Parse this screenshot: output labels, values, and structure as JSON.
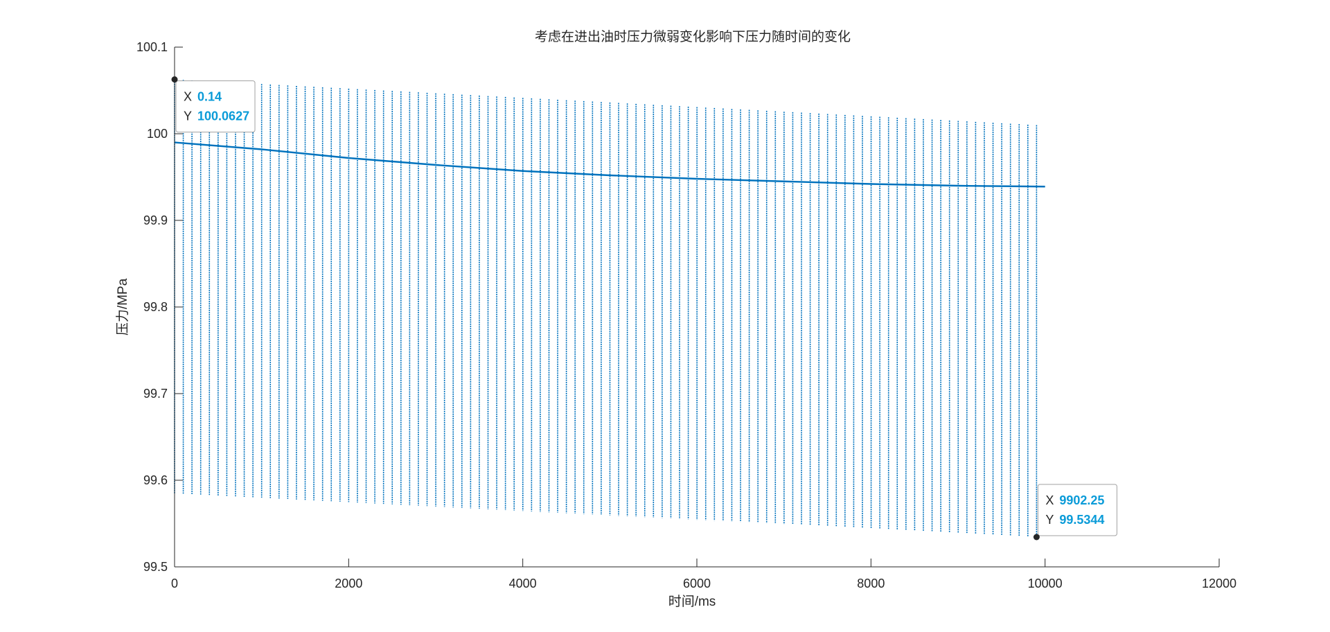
{
  "chart_data": {
    "type": "line",
    "title": "考虑在进出油时压力微弱变化影响下压力随时间的变化",
    "xlabel": "时间/ms",
    "ylabel": "压力/MPa",
    "xlim": [
      0,
      12000
    ],
    "ylim": [
      99.5,
      100.1
    ],
    "x_ticks": [
      "0",
      "2000",
      "4000",
      "6000",
      "8000",
      "10000",
      "12000"
    ],
    "y_ticks": [
      "99.5",
      "99.6",
      "99.7",
      "99.8",
      "99.9",
      "100",
      "100.1"
    ],
    "grid": false,
    "line_color": "#0072bd",
    "oscillation": {
      "period_ms": 100,
      "x_start": 0,
      "x_end": 9902.25,
      "upper_start": 100.0627,
      "upper_end": 100.01,
      "lower_start": 99.585,
      "lower_end": 99.5344
    },
    "series": [
      {
        "x": [
          0,
          1000,
          2000,
          3000,
          4000,
          5000,
          6000,
          7000,
          8000,
          9000,
          10000
        ],
        "y": [
          99.99,
          99.982,
          99.972,
          99.964,
          99.957,
          99.952,
          99.948,
          99.945,
          99.942,
          99.94,
          99.939
        ]
      }
    ],
    "datatips": [
      {
        "x_label": "X",
        "y_label": "Y",
        "x_value": "0.14",
        "y_value": "100.0627",
        "x": 0.14,
        "y": 100.0627,
        "placement": "below-right"
      },
      {
        "x_label": "X",
        "y_label": "Y",
        "x_value": "9902.25",
        "y_value": "99.5344",
        "x": 9902.25,
        "y": 99.5344,
        "placement": "above-right"
      }
    ]
  }
}
